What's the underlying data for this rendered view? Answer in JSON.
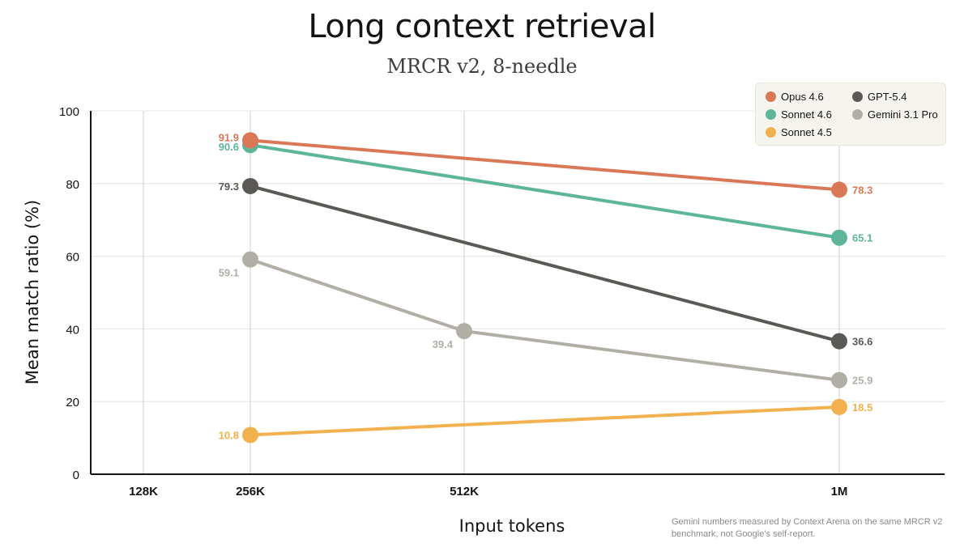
{
  "chart_data": {
    "type": "line",
    "title": "Long context retrieval",
    "subtitle": "MRCR v2, 8-needle",
    "xlabel": "Input tokens",
    "ylabel": "Mean match ratio (%)",
    "x_categories": [
      "128K",
      "256K",
      "512K",
      "1M"
    ],
    "ylim": [
      0,
      100
    ],
    "y_ticks": [
      "0",
      "20",
      "40",
      "60",
      "80",
      "100"
    ],
    "grid": true,
    "legend_position": "top-right",
    "series": [
      {
        "name": "Opus 4.6",
        "color": "#d97757",
        "x": [
          "256K",
          "1M"
        ],
        "values": [
          91.9,
          78.3
        ],
        "labels": [
          "91.9",
          "78.3"
        ]
      },
      {
        "name": "Sonnet 4.6",
        "color": "#5db59a",
        "x": [
          "256K",
          "1M"
        ],
        "values": [
          90.6,
          65.1
        ],
        "labels": [
          "90.6",
          "65.1"
        ]
      },
      {
        "name": "Sonnet 4.5",
        "color": "#f1b14e",
        "x": [
          "256K",
          "1M"
        ],
        "values": [
          10.8,
          18.5
        ],
        "labels": [
          "10.8",
          "18.5"
        ]
      },
      {
        "name": "GPT-5.4",
        "color": "#5a5955",
        "x": [
          "256K",
          "1M"
        ],
        "values": [
          79.3,
          36.6
        ],
        "labels": [
          "79.3",
          "36.6"
        ]
      },
      {
        "name": "Gemini 3.1 Pro",
        "color": "#b0aea5",
        "x": [
          "256K",
          "512K",
          "1M"
        ],
        "values": [
          59.1,
          39.4,
          25.9
        ],
        "labels": [
          "59.1",
          "39.4",
          "25.9"
        ]
      }
    ],
    "footnote": "Gemini numbers measured by Context Arena on the same MRCR v2 benchmark, not Google's self-report."
  }
}
